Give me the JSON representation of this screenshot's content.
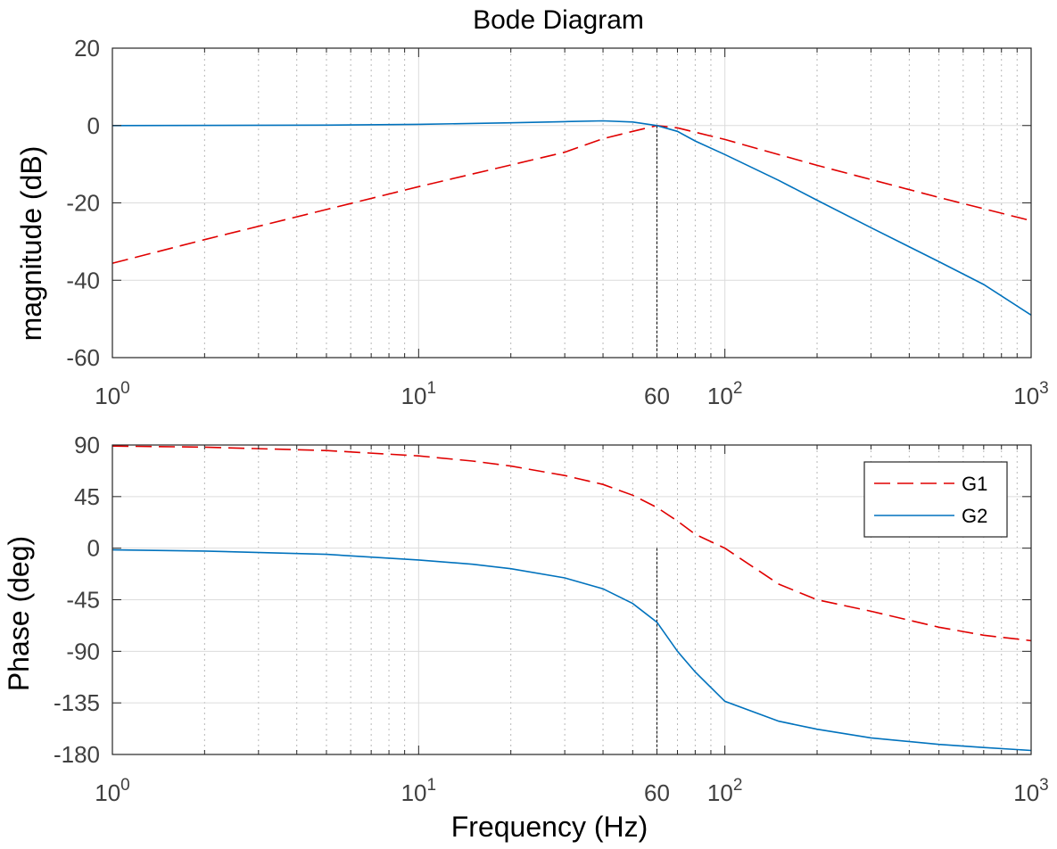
{
  "chart_data": [
    {
      "type": "line",
      "title": "Bode Diagram",
      "xlabel": "",
      "ylabel": "magnitude (dB)",
      "xscale": "log",
      "xlim": [
        1,
        1000
      ],
      "ylim": [
        -60,
        20
      ],
      "yticks": [
        20,
        0,
        -20,
        -40,
        -60
      ],
      "xticks": [
        {
          "base": "10",
          "exp": "0"
        },
        {
          "base": "10",
          "exp": "1"
        },
        {
          "base": "10",
          "exp": "2"
        },
        {
          "base": "10",
          "exp": "3"
        }
      ],
      "marker": {
        "x": 60,
        "label": "60"
      },
      "grid": true,
      "series": [
        {
          "name": "G1",
          "color": "#e00000",
          "dash": "dashed",
          "x": [
            1,
            2,
            5,
            10,
            20,
            30,
            40,
            50,
            60,
            70,
            100,
            200,
            500,
            1000
          ],
          "y": [
            -35.6,
            -29.5,
            -21.7,
            -15.8,
            -10.2,
            -6.9,
            -3.4,
            -1.5,
            0,
            -0.6,
            -3.6,
            -10.3,
            -18.6,
            -24.6
          ]
        },
        {
          "name": "G2",
          "color": "#0072bd",
          "dash": "solid",
          "x": [
            1,
            5,
            10,
            20,
            30,
            40,
            50,
            60,
            70,
            80,
            100,
            150,
            200,
            300,
            500,
            700,
            1000
          ],
          "y": [
            0,
            0.1,
            0.3,
            0.7,
            1.0,
            1.2,
            0.9,
            0,
            -1.5,
            -4.0,
            -7.5,
            -14.2,
            -19.3,
            -26.4,
            -35.2,
            -41.1,
            -49.0
          ]
        }
      ]
    },
    {
      "type": "line",
      "title": "",
      "xlabel": "Frequency (Hz)",
      "ylabel": "Phase (deg)",
      "xscale": "log",
      "xlim": [
        1,
        1000
      ],
      "ylim": [
        -180,
        90
      ],
      "yticks": [
        90,
        45,
        0,
        -45,
        -90,
        -135,
        -180
      ],
      "xticks": [
        {
          "base": "10",
          "exp": "0"
        },
        {
          "base": "10",
          "exp": "1"
        },
        {
          "base": "10",
          "exp": "2"
        },
        {
          "base": "10",
          "exp": "3"
        }
      ],
      "marker": {
        "x": 60,
        "label": "60"
      },
      "grid": true,
      "legend": {
        "position": "top-right",
        "entries": [
          "G1",
          "G2"
        ]
      },
      "series": [
        {
          "name": "G1",
          "color": "#e00000",
          "dash": "dashed",
          "x": [
            1,
            2,
            5,
            10,
            15,
            20,
            30,
            40,
            50,
            60,
            70,
            80,
            100,
            150,
            200,
            300,
            500,
            700,
            1000
          ],
          "y": [
            89.1,
            88.1,
            85.2,
            80.5,
            76,
            71.6,
            63.4,
            55.6,
            46.2,
            35.5,
            23.6,
            12.1,
            0,
            -31.4,
            -45,
            -55,
            -69,
            -76,
            -80.7
          ]
        },
        {
          "name": "G2",
          "color": "#0072bd",
          "dash": "solid",
          "x": [
            1,
            2,
            5,
            10,
            15,
            20,
            30,
            40,
            50,
            60,
            70,
            80,
            100,
            150,
            200,
            300,
            500,
            700,
            1000
          ],
          "y": [
            -1.4,
            -2.5,
            -5.4,
            -10.3,
            -14,
            -17.9,
            -25.9,
            -35.4,
            -48.3,
            -64.6,
            -90,
            -108,
            -133.6,
            -151,
            -158,
            -165.5,
            -171.2,
            -173.9,
            -176.5
          ]
        }
      ]
    }
  ]
}
